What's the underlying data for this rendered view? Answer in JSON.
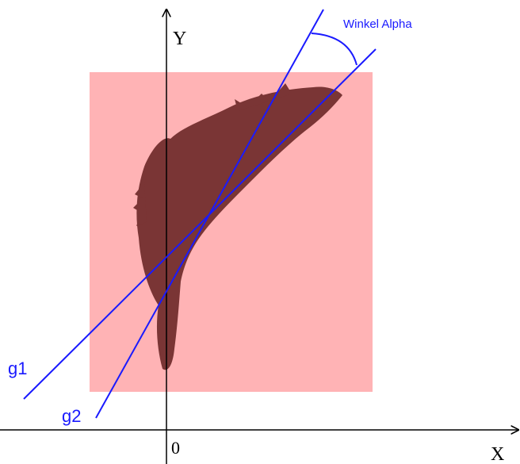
{
  "labels": {
    "angle": "Winkel Alpha",
    "y_axis": "Y",
    "x_axis": "X",
    "origin": "0",
    "line1": "g1",
    "line2": "g2"
  }
}
